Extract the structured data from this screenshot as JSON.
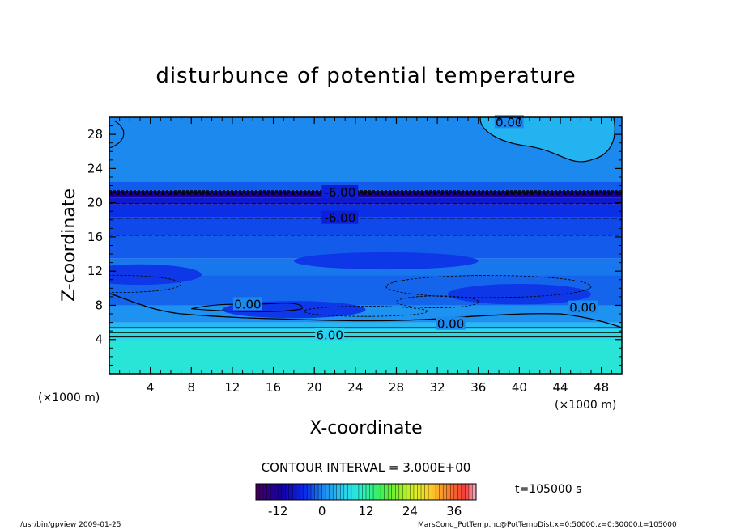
{
  "chart_data": {
    "type": "heatmap",
    "title": "disturbunce of potential temperature",
    "xlabel": "X-coordinate",
    "ylabel": "Z-coordinate",
    "x_unit_left": "(×1000 m)",
    "x_unit_right": "(×1000 m)",
    "xlim": [
      0,
      50
    ],
    "ylim": [
      0,
      30
    ],
    "x_ticks": [
      4,
      8,
      12,
      16,
      20,
      24,
      28,
      32,
      36,
      40,
      44,
      48
    ],
    "y_ticks": [
      4,
      8,
      12,
      16,
      20,
      24,
      28
    ],
    "contour_interval_text": "CONTOUR INTERVAL = 3.000E+00",
    "time_text": "t=105000 s",
    "colorbar": {
      "min": -18,
      "max": 42,
      "ticks": [
        -12,
        0,
        12,
        24,
        36
      ]
    },
    "field_bands": [
      {
        "z0": 0,
        "z1": 3.8,
        "value": 9
      },
      {
        "z0": 3.8,
        "z1": 5.2,
        "value": 7.5
      },
      {
        "z0": 5.2,
        "z1": 6.0,
        "value": 4
      },
      {
        "z0": 6.0,
        "z1": 8.0,
        "value": 1
      },
      {
        "z0": 8.0,
        "z1": 11.5,
        "value": -1.5
      },
      {
        "z0": 11.5,
        "z1": 13.5,
        "value": -0.5
      },
      {
        "z0": 13.5,
        "z1": 16.2,
        "value": -2
      },
      {
        "z0": 16.2,
        "z1": 18.3,
        "value": -3
      },
      {
        "z0": 18.3,
        "z1": 19.8,
        "value": -4.5
      },
      {
        "z0": 19.8,
        "z1": 20.6,
        "value": -7
      },
      {
        "z0": 20.6,
        "z1": 21.4,
        "value": -11
      },
      {
        "z0": 21.4,
        "z1": 22.5,
        "value": -2
      },
      {
        "z0": 22.5,
        "z1": 30,
        "value": 0.5
      }
    ],
    "contour_labels": [
      {
        "x": 22.5,
        "z": 21.2,
        "text": "-6.00"
      },
      {
        "x": 22.5,
        "z": 18.2,
        "text": "-6.00"
      },
      {
        "x": 21.5,
        "z": 4.5,
        "text": "6.00"
      },
      {
        "x": 13.5,
        "z": 8.1,
        "text": "0.00"
      },
      {
        "x": 33.3,
        "z": 5.8,
        "text": "0.00"
      },
      {
        "x": 46.2,
        "z": 7.7,
        "text": "0.00"
      },
      {
        "x": 39.0,
        "z": 29.4,
        "text": "0.00"
      }
    ],
    "grid": false
  },
  "footer": {
    "left": "/usr/bin/gpview   2009-01-25",
    "right": "MarsCond_PotTemp.nc@PotTempDist,x=0:50000,z=0:30000,t=105000"
  },
  "colors": {
    "background": "#ffffff",
    "contour": "#000000"
  }
}
